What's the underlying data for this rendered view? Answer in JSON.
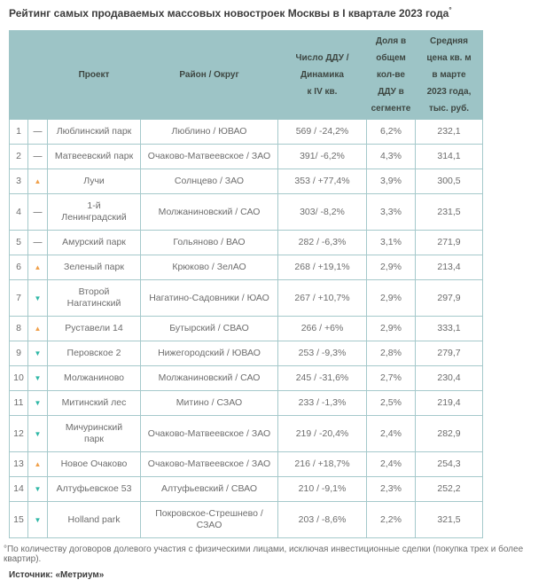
{
  "title": {
    "text": "Рейтинг самых продаваемых массовых новостроек Москвы в I квартале 2023 года",
    "marker": "°"
  },
  "table": {
    "headers": {
      "rank": "",
      "trend": "",
      "project": "Проект",
      "district": "Район / Округ",
      "ddu": "Число ДДУ /\nДинамика\nк IV кв.",
      "share": "Доля в\nобщем\nкол-ве\nДДУ в\nсегменте",
      "price": "Средняя\nцена кв. м\nв марте\n2023 года,\nтыс. руб."
    },
    "rows": [
      {
        "rank": "1",
        "trend": "same",
        "project": "Люблинский парк",
        "district": "Люблино / ЮВАО",
        "ddu": "569 / -24,2%",
        "share": "6,2%",
        "price": "232,1"
      },
      {
        "rank": "2",
        "trend": "same",
        "project": "Матвеевский парк",
        "district": "Очаково-Матвеевское / ЗАО",
        "ddu": "391/ -6,2%",
        "share": "4,3%",
        "price": "314,1"
      },
      {
        "rank": "3",
        "trend": "up",
        "project": "Лучи",
        "district": "Солнцево / ЗАО",
        "ddu": "353 / +77,4%",
        "share": "3,9%",
        "price": "300,5"
      },
      {
        "rank": "4",
        "trend": "same",
        "project": "1-й\nЛенинградский",
        "district": "Молжаниновский / САО",
        "ddu": "303/ -8,2%",
        "share": "3,3%",
        "price": "231,5"
      },
      {
        "rank": "5",
        "trend": "same",
        "project": "Амурский парк",
        "district": "Гольяново / ВАО",
        "ddu": "282 / -6,3%",
        "share": "3,1%",
        "price": "271,9"
      },
      {
        "rank": "6",
        "trend": "up",
        "project": "Зеленый парк",
        "district": "Крюково / ЗелАО",
        "ddu": "268 / +19,1%",
        "share": "2,9%",
        "price": "213,4"
      },
      {
        "rank": "7",
        "trend": "down",
        "project": "Второй\nНагатинский",
        "district": "Нагатино-Садовники / ЮАО",
        "ddu": "267 / +10,7%",
        "share": "2,9%",
        "price": "297,9"
      },
      {
        "rank": "8",
        "trend": "up",
        "project": "Руставели 14",
        "district": "Бутырский / СВАО",
        "ddu": "266 / +6%",
        "share": "2,9%",
        "price": "333,1"
      },
      {
        "rank": "9",
        "trend": "down",
        "project": "Перовское 2",
        "district": "Нижегородский / ЮВАО",
        "ddu": "253 / -9,3%",
        "share": "2,8%",
        "price": "279,7"
      },
      {
        "rank": "10",
        "trend": "down",
        "project": "Молжаниново",
        "district": "Молжаниновский / САО",
        "ddu": "245 / -31,6%",
        "share": "2,7%",
        "price": "230,4"
      },
      {
        "rank": "11",
        "trend": "down",
        "project": "Митинский лес",
        "district": "Митино / СЗАО",
        "ddu": "233 / -1,3%",
        "share": "2,5%",
        "price": "219,4"
      },
      {
        "rank": "12",
        "trend": "down",
        "project": "Мичуринский\nпарк",
        "district": "Очаково-Матвеевское / ЗАО",
        "ddu": "219 / -20,4%",
        "share": "2,4%",
        "price": "282,9"
      },
      {
        "rank": "13",
        "trend": "up",
        "project": "Новое Очаково",
        "district": "Очаково-Матвеевское / ЗАО",
        "ddu": "216 / +18,7%",
        "share": "2,4%",
        "price": "254,3"
      },
      {
        "rank": "14",
        "trend": "down",
        "project": "Алтуфьевское 53",
        "district": "Алтуфьевский / СВАО",
        "ddu": "210 / -9,1%",
        "share": "2,3%",
        "price": "252,2"
      },
      {
        "rank": "15",
        "trend": "down",
        "project": "Holland park",
        "district": "Покровское-Стрешнево / СЗАО",
        "ddu": "203 / -8,6%",
        "share": "2,2%",
        "price": "321,5"
      }
    ]
  },
  "trend_glyphs": {
    "up": "▲",
    "down": "▼",
    "same": "—"
  },
  "colors": {
    "header_bg": "#9dc4c6",
    "cell_border": "#a5c9cb",
    "trend_up": "#f0a04a",
    "trend_down": "#2eb7a6",
    "trend_same": "#8f8f8f",
    "body_text": "#6d6d6d",
    "title_text": "#3c3c3c"
  },
  "footnote": "°По количеству договоров долевого участия с физическими лицами, исключая инвестиционные сделки (покупка трех и более квартир).",
  "source": "Источник: «Метриум»"
}
